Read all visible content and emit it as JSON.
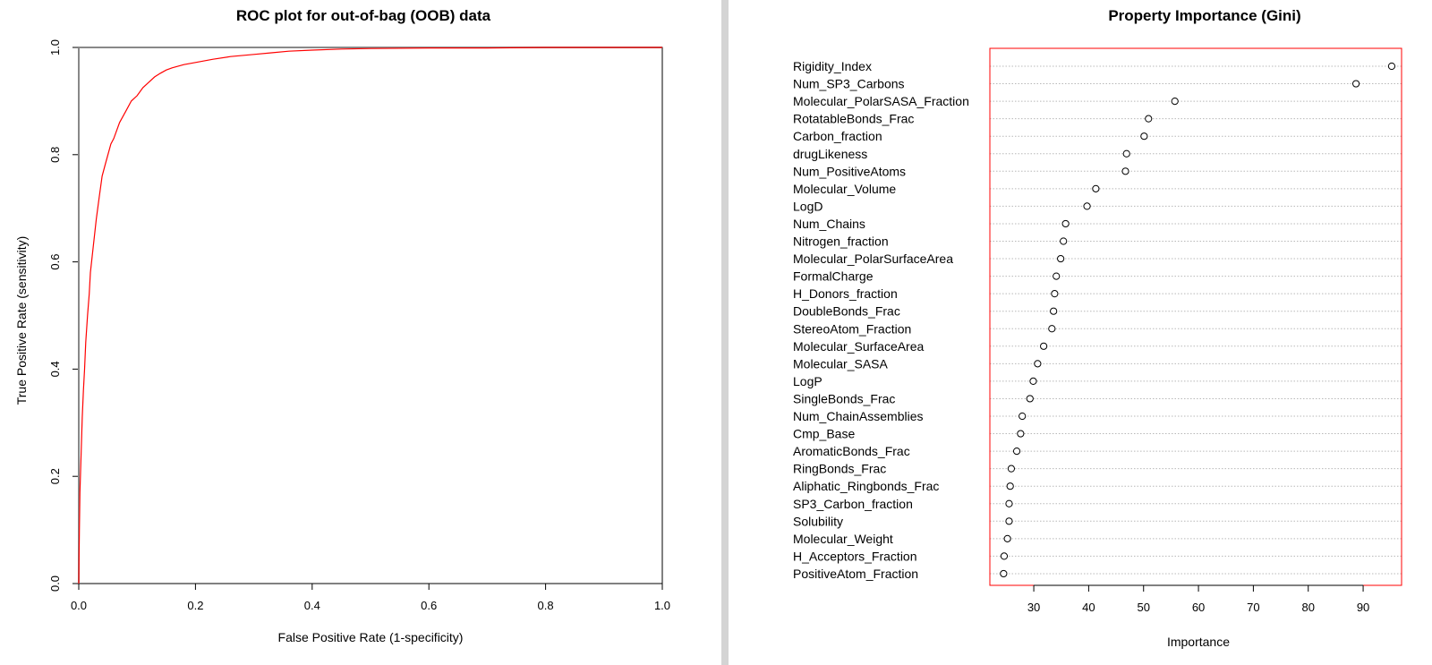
{
  "chart_data": [
    {
      "type": "line",
      "title": "ROC plot for out-of-bag (OOB) data",
      "xlabel": "False Positive Rate (1-specificity)",
      "ylabel": "True Positive Rate (sensitivity)",
      "xlim": [
        0,
        1
      ],
      "ylim": [
        0,
        1
      ],
      "x_ticks": [
        "0.0",
        "0.2",
        "0.4",
        "0.6",
        "0.8",
        "1.0"
      ],
      "y_ticks": [
        "0.0",
        "0.2",
        "0.4",
        "0.6",
        "0.8",
        "1.0"
      ],
      "grid": false,
      "series": [
        {
          "color": "#ff0000",
          "x": [
            0,
            0.001,
            0.002,
            0.004,
            0.006,
            0.008,
            0.01,
            0.012,
            0.015,
            0.018,
            0.02,
            0.025,
            0.03,
            0.035,
            0.04,
            0.045,
            0.05,
            0.055,
            0.06,
            0.07,
            0.08,
            0.09,
            0.1,
            0.11,
            0.12,
            0.13,
            0.14,
            0.15,
            0.16,
            0.18,
            0.2,
            0.23,
            0.26,
            0.3,
            0.33,
            0.36,
            0.4,
            0.45,
            0.5,
            0.6,
            0.7,
            0.8,
            0.9,
            1.0
          ],
          "y": [
            0,
            0.1,
            0.17,
            0.24,
            0.31,
            0.36,
            0.4,
            0.45,
            0.5,
            0.54,
            0.58,
            0.63,
            0.68,
            0.72,
            0.76,
            0.78,
            0.8,
            0.82,
            0.83,
            0.86,
            0.88,
            0.9,
            0.91,
            0.925,
            0.935,
            0.945,
            0.952,
            0.958,
            0.962,
            0.968,
            0.972,
            0.978,
            0.983,
            0.987,
            0.99,
            0.993,
            0.995,
            0.997,
            0.998,
            0.999,
            0.999,
            1.0,
            1.0,
            1.0
          ]
        }
      ]
    },
    {
      "type": "scatter",
      "title": "Property Importance (Gini)",
      "xlabel": "Importance",
      "ylabel": "",
      "xlim": [
        22,
        97
      ],
      "x_ticks": [
        30,
        40,
        50,
        60,
        70,
        80,
        90
      ],
      "grid": "horizontal dotted",
      "box_color": "#ff0000",
      "categories": [
        "Rigidity_Index",
        "Num_SP3_Carbons",
        "Molecular_PolarSASA_Fraction",
        "RotatableBonds_Frac",
        "Carbon_fraction",
        "drugLikeness",
        "Num_PositiveAtoms",
        "Molecular_Volume",
        "LogD",
        "Num_Chains",
        "Nitrogen_fraction",
        "Molecular_PolarSurfaceArea",
        "FormalCharge",
        "H_Donors_fraction",
        "DoubleBonds_Frac",
        "StereoAtom_Fraction",
        "Molecular_SurfaceArea",
        "Molecular_SASA",
        "LogP",
        "SingleBonds_Frac",
        "Num_ChainAssemblies",
        "Cmp_Base",
        "AromaticBonds_Frac",
        "RingBonds_Frac",
        "Aliphatic_Ringbonds_Frac",
        "SP3_Carbon_fraction",
        "Solubility",
        "Molecular_Weight",
        "H_Acceptors_Fraction",
        "PositiveAtom_Fraction"
      ],
      "values": [
        95.2,
        88.7,
        55.7,
        50.9,
        50.1,
        46.9,
        46.7,
        41.3,
        39.7,
        35.8,
        35.4,
        34.9,
        34.1,
        33.8,
        33.6,
        33.3,
        31.8,
        30.7,
        29.9,
        29.3,
        27.9,
        27.6,
        26.9,
        25.9,
        25.7,
        25.5,
        25.5,
        25.2,
        24.6,
        24.5
      ]
    }
  ]
}
